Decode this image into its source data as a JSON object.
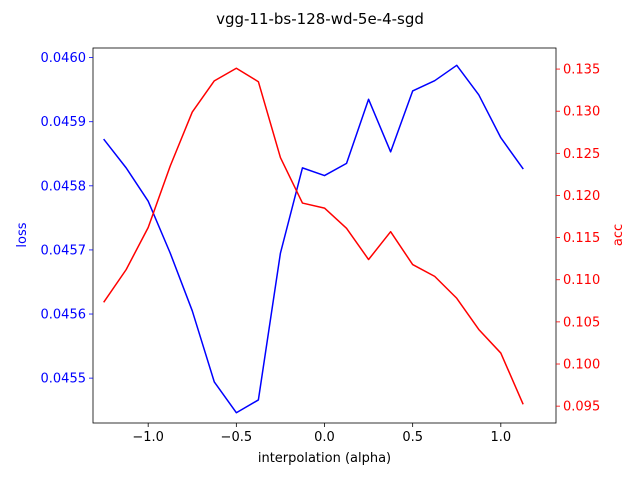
{
  "chart_data": {
    "type": "line",
    "title": "vgg-11-bs-128-wd-5e-4-sgd",
    "xlabel": "interpolation (alpha)",
    "ylabel_left": "loss",
    "ylabel_right": "acc",
    "xlim": [
      -1.313,
      1.313
    ],
    "ylim_left": [
      0.04543,
      0.046015
    ],
    "ylim_right": [
      0.093,
      0.1375
    ],
    "x_ticks": [
      -1.0,
      -0.5,
      0.0,
      0.5,
      1.0
    ],
    "x_tick_labels": [
      "−1.0",
      "−0.5",
      "0.0",
      "0.5",
      "1.0"
    ],
    "left_ticks": [
      0.0455,
      0.0456,
      0.0457,
      0.0458,
      0.0459,
      0.046
    ],
    "left_tick_labels": [
      "0.0455",
      "0.0456",
      "0.0457",
      "0.0458",
      "0.0459",
      "0.0460"
    ],
    "right_ticks": [
      0.095,
      0.1,
      0.105,
      0.11,
      0.115,
      0.12,
      0.125,
      0.13,
      0.135
    ],
    "right_tick_labels": [
      "0.095",
      "0.100",
      "0.105",
      "0.110",
      "0.115",
      "0.120",
      "0.125",
      "0.130",
      "0.135"
    ],
    "grid": false,
    "x": [
      -1.25,
      -1.125,
      -1.0,
      -0.875,
      -0.75,
      -0.625,
      -0.5,
      -0.375,
      -0.25,
      -0.125,
      0.0,
      0.125,
      0.25,
      0.375,
      0.5,
      0.625,
      0.75,
      0.875,
      1.0,
      1.125
    ],
    "series": [
      {
        "name": "loss",
        "axis": "left",
        "color": "#0000ff",
        "values": [
          0.045872,
          0.045828,
          0.045776,
          0.045695,
          0.045605,
          0.045494,
          0.045446,
          0.045466,
          0.045695,
          0.045828,
          0.045816,
          0.045835,
          0.045935,
          0.045853,
          0.045948,
          0.045964,
          0.045988,
          0.045942,
          0.045875,
          0.045827
        ]
      },
      {
        "name": "acc",
        "axis": "right",
        "color": "#ff0000",
        "values": [
          0.1074,
          0.1112,
          0.1162,
          0.1235,
          0.1299,
          0.1336,
          0.1351,
          0.1335,
          0.1245,
          0.1191,
          0.1185,
          0.1161,
          0.1124,
          0.1157,
          0.1118,
          0.1104,
          0.1078,
          0.1041,
          0.1013,
          0.0953
        ]
      }
    ]
  },
  "colors": {
    "left_axis": "#0000ff",
    "right_axis": "#ff0000",
    "frame": "#000000"
  }
}
